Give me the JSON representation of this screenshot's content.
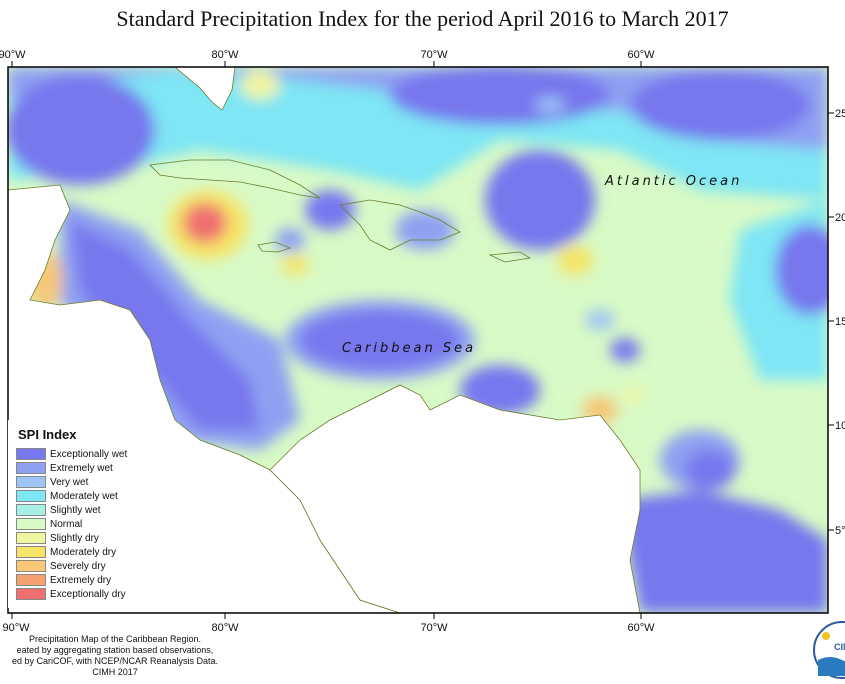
{
  "title": "Standard Precipitation Index for the period April 2016 to March 2017",
  "ocean_labels": {
    "atlantic": "Atlantic Ocean",
    "caribbean": "Caribbean Sea"
  },
  "axis": {
    "top_lon": [
      "90°W",
      "80°W",
      "70°W",
      "60°W"
    ],
    "bottom_lon": [
      "90°W",
      "80°W",
      "70°W",
      "60°W"
    ],
    "right_lat": [
      "25",
      "20",
      "15",
      "10",
      "5°"
    ]
  },
  "legend": {
    "title": "SPI Index",
    "items": [
      {
        "label": "Exceptionally wet",
        "color": "#7777ee"
      },
      {
        "label": "Extremely wet",
        "color": "#8fa0f2"
      },
      {
        "label": "Very wet",
        "color": "#9ec4f6"
      },
      {
        "label": "Moderately wet",
        "color": "#7ee6f4"
      },
      {
        "label": "Slightly wet",
        "color": "#a8f0e6"
      },
      {
        "label": "Normal",
        "color": "#d8fac6"
      },
      {
        "label": "Slightly dry",
        "color": "#f0f6a0"
      },
      {
        "label": "Moderately dry",
        "color": "#f6e468"
      },
      {
        "label": "Severely dry",
        "color": "#f6c878"
      },
      {
        "label": "Extremely dry",
        "color": "#f4a070"
      },
      {
        "label": "Exceptionally dry",
        "color": "#f07070"
      }
    ]
  },
  "credits": [
    "Precipitation Map of the Caribbean Region.",
    "eated by aggregating station based observations,",
    "ed by CariCOF, with NCEP/NCAR Reanalysis Data.",
    "CIMH 2017"
  ],
  "logo_text": "CIM"
}
